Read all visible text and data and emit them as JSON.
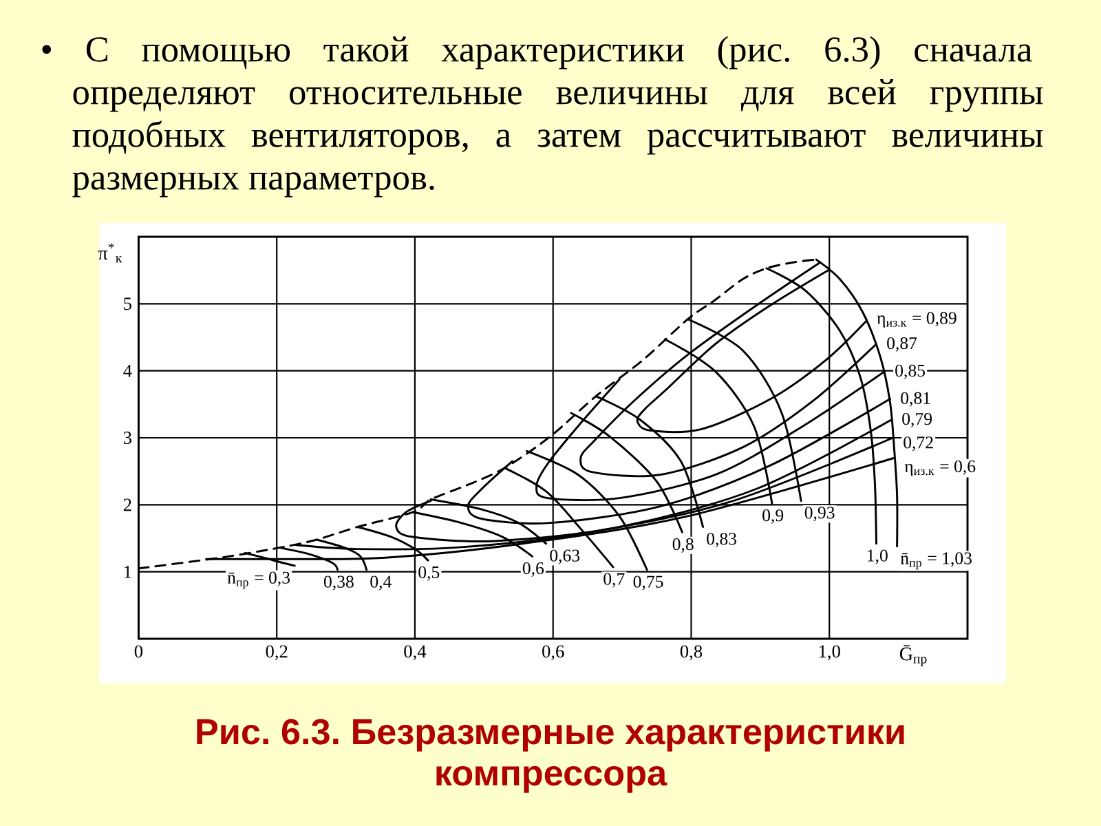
{
  "chart_data": {
    "type": "line",
    "title": "Рис. 6.3. Безразмерные характеристики компрессора",
    "annotations": [
      "• С помощью такой характеристики (рис. 6.3) сначала определяют относительные величины для всей группы подобных вентиляторов, а затем рассчитывают величины размерных параметров."
    ],
    "xlabel": "Ḡ$_{пр}$",
    "ylabel": "π$^{*}$$_{к}$",
    "xlim": [
      0,
      1.2
    ],
    "ylim": [
      0,
      6
    ],
    "xticks": [
      0,
      {
        "value": 0.2,
        "label": "0,2"
      },
      {
        "value": 0.4,
        "label": "0,4"
      },
      {
        "value": 0.6,
        "label": "0,6"
      },
      {
        "value": 0.8,
        "label": "0,8"
      },
      {
        "value": 1.0,
        "label": "1,0"
      }
    ],
    "yticks": [
      1,
      2,
      3,
      4,
      5
    ],
    "grid": true,
    "series": [
      {
        "color": "#000000",
        "line_style": "dashed",
        "x": [
          0,
          0.118,
          0.204,
          0.258,
          0.317,
          0.397,
          0.423,
          0.477,
          0.53,
          0.596,
          0.662,
          0.73,
          0.795,
          0.835,
          0.875,
          0.909,
          0.949,
          0.981
        ],
        "values": [
          1.05,
          1.21,
          1.36,
          1.48,
          1.67,
          1.89,
          2.08,
          2.3,
          2.55,
          3.02,
          3.62,
          4.16,
          4.77,
          5.06,
          5.37,
          5.53,
          5.62,
          5.66
        ]
      },
      {
        "name": "n̄$_{пр}$ = 0,3",
        "color": "#000000",
        "x": [
          0.154,
          0.185,
          0.21,
          0.226
        ],
        "values": [
          1.28,
          1.2,
          1.13,
          1.09
        ]
      },
      {
        "name": "0,38",
        "color": "#000000",
        "x": [
          0.204,
          0.248,
          0.281,
          0.288
        ],
        "values": [
          1.36,
          1.26,
          1.13,
          1.03
        ]
      },
      {
        "name": "0,4",
        "color": "#000000",
        "x": [
          0.258,
          0.298,
          0.321,
          0.33
        ],
        "values": [
          1.48,
          1.36,
          1.23,
          1.03
        ]
      },
      {
        "name": "0,5",
        "color": "#000000",
        "x": [
          0.317,
          0.366,
          0.4,
          0.419
        ],
        "values": [
          1.67,
          1.52,
          1.34,
          1.17
        ]
      },
      {
        "name": "0,6",
        "color": "#000000",
        "x": [
          0.397,
          0.467,
          0.527,
          0.57
        ],
        "values": [
          1.89,
          1.73,
          1.52,
          1.23
        ]
      },
      {
        "name": "0,63",
        "color": "#000000",
        "x": [
          0.423,
          0.497,
          0.55,
          0.59
        ],
        "values": [
          2.08,
          1.93,
          1.73,
          1.42
        ]
      },
      {
        "name": "0,7",
        "color": "#000000",
        "x": [
          0.53,
          0.59,
          0.641,
          0.687
        ],
        "values": [
          2.55,
          2.2,
          1.63,
          1.07
        ]
      },
      {
        "name": "0,75",
        "color": "#000000",
        "x": [
          0.562,
          0.636,
          0.696,
          0.736
        ],
        "values": [
          2.8,
          2.45,
          1.83,
          1.03
        ]
      },
      {
        "name": "0,8",
        "color": "#000000",
        "x": [
          0.626,
          0.682,
          0.75,
          0.787
        ],
        "values": [
          3.37,
          3.02,
          2.35,
          1.59
        ]
      },
      {
        "name": "0,83",
        "color": "#000000",
        "x": [
          0.662,
          0.726,
          0.785,
          0.817
        ],
        "values": [
          3.62,
          3.27,
          2.65,
          1.67
        ]
      },
      {
        "name": "0,9",
        "color": "#000000",
        "x": [
          0.762,
          0.835,
          0.891,
          0.917
        ],
        "values": [
          4.47,
          3.99,
          3.17,
          2.02
        ]
      },
      {
        "name": "0,93",
        "color": "#000000",
        "x": [
          0.795,
          0.875,
          0.931,
          0.959
        ],
        "values": [
          4.77,
          4.3,
          3.37,
          2.06
        ]
      },
      {
        "name": "1,0",
        "color": "#000000",
        "x": [
          0.909,
          0.965,
          1.015,
          1.045,
          1.06,
          1.066,
          1.068
        ],
        "values": [
          5.53,
          5.2,
          4.6,
          3.9,
          3.1,
          2.3,
          1.42
        ]
      },
      {
        "name": "n̄$_{пр}$ = 1,03",
        "color": "#000000",
        "x": [
          0.981,
          1.015,
          1.048,
          1.074,
          1.088,
          1.094,
          1.098,
          1.098
        ],
        "values": [
          5.66,
          5.37,
          4.88,
          4.2,
          3.52,
          2.82,
          2.14,
          1.38
        ]
      },
      {
        "name": "η$_{из.к}$ = 0,89",
        "color": "#000000",
        "x": [
          1.0,
          0.915,
          0.835,
          0.766,
          0.732,
          0.722,
          0.74,
          0.815,
          0.915,
          0.995,
          1.054
        ],
        "values": [
          5.51,
          4.98,
          4.4,
          3.74,
          3.42,
          3.25,
          3.11,
          3.13,
          3.58,
          4.16,
          4.75
        ]
      },
      {
        "name": "0,87",
        "color": "#000000",
        "x": [
          0.987,
          0.895,
          0.795,
          0.716,
          0.66,
          0.64,
          0.656,
          0.756,
          0.875,
          0.975,
          1.068
        ],
        "values": [
          5.62,
          4.98,
          4.24,
          3.54,
          2.96,
          2.7,
          2.49,
          2.45,
          2.86,
          3.54,
          4.4
        ]
      },
      {
        "name": "0,85",
        "color": "#000000",
        "x": [
          0.696,
          0.636,
          0.592,
          0.576,
          0.592,
          0.696,
          0.835,
          0.955,
          1.08
        ],
        "values": [
          3.87,
          3.17,
          2.61,
          2.28,
          2.1,
          2.1,
          2.45,
          3.13,
          3.99
        ]
      },
      {
        "name": "0,81",
        "color": "#000000",
        "x": [
          0.541,
          0.497,
          0.477,
          0.497,
          0.596,
          0.756,
          0.915,
          1.088
        ],
        "values": [
          2.65,
          2.24,
          1.98,
          1.79,
          1.73,
          1.98,
          2.59,
          3.58
        ]
      },
      {
        "name": "0,79",
        "color": "#000000",
        "x": [
          0.423,
          0.387,
          0.373,
          0.397,
          0.517,
          0.696,
          0.895,
          1.09
        ],
        "values": [
          2.06,
          1.89,
          1.67,
          1.52,
          1.46,
          1.67,
          2.24,
          3.27
        ]
      },
      {
        "name": "0,72",
        "color": "#000000",
        "x": [
          0.228,
          0.317,
          0.457,
          0.636,
          0.855,
          1.092
        ],
        "values": [
          1.4,
          1.34,
          1.36,
          1.56,
          2.04,
          3.0
        ]
      },
      {
        "name": "η$_{из.к}$ = 0,6",
        "color": "#000000",
        "x": [
          0.098,
          0.198,
          0.357,
          0.556,
          0.795,
          1.094
        ],
        "values": [
          1.19,
          1.19,
          1.21,
          1.42,
          1.83,
          2.7
        ]
      }
    ]
  }
}
